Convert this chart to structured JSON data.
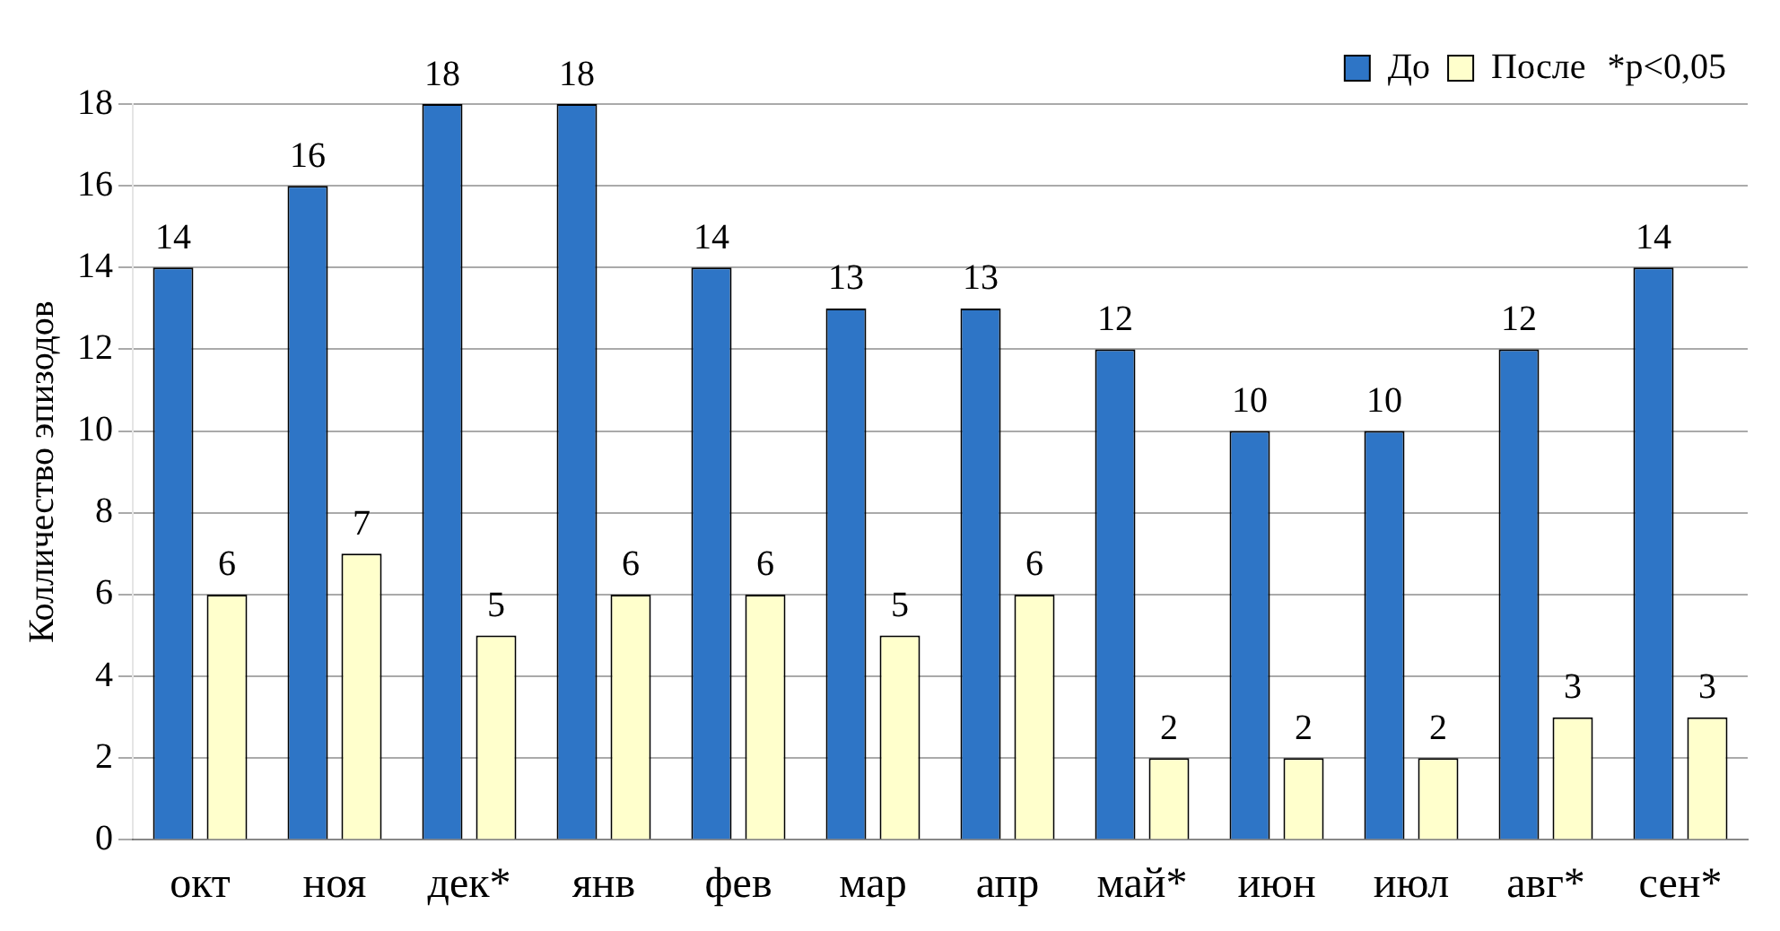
{
  "chart_data": {
    "type": "bar",
    "ylabel": "Колличество эпизодов",
    "categories": [
      "окт",
      "ноя",
      "дек*",
      "янв",
      "фев",
      "мар",
      "апр",
      "май*",
      "июн",
      "июл",
      "авг*",
      "сен*"
    ],
    "series": [
      {
        "name": "До",
        "color": "#2e75c6",
        "values": [
          14,
          16,
          18,
          18,
          14,
          13,
          13,
          12,
          10,
          10,
          12,
          14
        ]
      },
      {
        "name": "После",
        "color": "#ffffcc",
        "values": [
          6,
          7,
          5,
          6,
          6,
          5,
          6,
          2,
          2,
          2,
          3,
          3
        ]
      }
    ],
    "annotations": [
      "*p<0,05"
    ],
    "ylim": [
      0,
      18
    ],
    "yticks": [
      0,
      2,
      4,
      6,
      8,
      10,
      12,
      14,
      16,
      18
    ],
    "grid": "y",
    "legend": "top right",
    "data_labels": true
  }
}
